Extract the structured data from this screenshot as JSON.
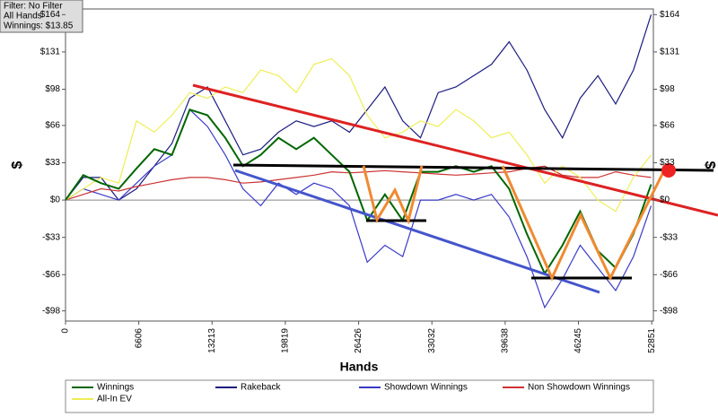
{
  "chart_data": {
    "type": "line",
    "annotations": [
      "Filter: No Filter",
      "All Hands",
      "Winnings: $13.85"
    ],
    "x_label": "Hands",
    "y_label": "$",
    "y2_label": "$",
    "x": [
      0,
      1600,
      3200,
      4800,
      6400,
      8000,
      9600,
      11200,
      12800,
      14400,
      16000,
      17600,
      19200,
      20800,
      22400,
      24000,
      25600,
      27200,
      28800,
      30400,
      32000,
      33600,
      35200,
      36800,
      38400,
      40000,
      41600,
      43200,
      44800,
      46400,
      48000,
      49600,
      51200,
      52800
    ],
    "series": [
      {
        "name": "Winnings",
        "color": "#006600",
        "values": [
          0,
          22,
          15,
          10,
          28,
          45,
          40,
          80,
          75,
          55,
          30,
          40,
          55,
          45,
          55,
          40,
          25,
          -18,
          5,
          -18,
          25,
          25,
          30,
          25,
          30,
          10,
          -30,
          -65,
          -40,
          -10,
          -45,
          -60,
          -30,
          13.85
        ]
      },
      {
        "name": "Rakeback",
        "color": "#1c1c80",
        "values": [
          0,
          20,
          20,
          0,
          10,
          30,
          50,
          90,
          100,
          70,
          40,
          45,
          60,
          70,
          65,
          70,
          60,
          80,
          100,
          70,
          55,
          95,
          100,
          110,
          120,
          140,
          115,
          80,
          55,
          90,
          110,
          85,
          115,
          164
        ]
      },
      {
        "name": "Showdown Winnings",
        "color": "#3a3ac8",
        "values": [
          0,
          10,
          5,
          0,
          15,
          30,
          40,
          80,
          65,
          40,
          10,
          -5,
          15,
          5,
          15,
          10,
          -5,
          -55,
          -40,
          -50,
          0,
          0,
          5,
          0,
          5,
          -15,
          -50,
          -95,
          -70,
          -40,
          -60,
          -80,
          -50,
          -5
        ]
      },
      {
        "name": "Non Showdown Winnings",
        "color": "#cc3333",
        "values": [
          0,
          5,
          10,
          8,
          12,
          15,
          18,
          20,
          20,
          18,
          15,
          16,
          18,
          20,
          22,
          25,
          24,
          25,
          26,
          25,
          24,
          23,
          22,
          23,
          24,
          25,
          28,
          30,
          22,
          20,
          20,
          25,
          22,
          20
        ]
      },
      {
        "name": "All-In EV",
        "color": "#eeee55",
        "values": [
          0,
          10,
          20,
          15,
          70,
          60,
          75,
          95,
          90,
          100,
          95,
          115,
          110,
          95,
          120,
          125,
          110,
          75,
          55,
          60,
          70,
          65,
          80,
          70,
          55,
          60,
          40,
          15,
          30,
          20,
          0,
          -10,
          20,
          40
        ]
      }
    ],
    "xlim": [
      0,
      53000
    ],
    "xticks": [
      0,
      6606,
      13213,
      19819,
      26426,
      33032,
      39638,
      46245,
      52851
    ],
    "ylim": [
      -107,
      169
    ],
    "yticks": [
      {
        "value": -98,
        "label": "-$98"
      },
      {
        "value": -66,
        "label": "-$66"
      },
      {
        "value": -33,
        "label": "-$33"
      },
      {
        "value": 0,
        "label": "$0"
      },
      {
        "value": 33,
        "label": "$33"
      },
      {
        "value": 66,
        "label": "$66"
      },
      {
        "value": 98,
        "label": "$98"
      },
      {
        "value": 131,
        "label": "$131"
      },
      {
        "value": 164,
        "label": "$164"
      }
    ],
    "y2lim": [
      -107,
      169
    ],
    "y2ticks": [
      {
        "value": -98,
        "label": "-$98"
      },
      {
        "value": -66,
        "label": "-$66"
      },
      {
        "value": -33,
        "label": "-$33"
      },
      {
        "value": 0,
        "label": "$0"
      },
      {
        "value": 33,
        "label": "$33"
      },
      {
        "value": 66,
        "label": "$66"
      },
      {
        "value": 98,
        "label": "$98"
      },
      {
        "value": 131,
        "label": "$131"
      },
      {
        "value": 164,
        "label": "$164"
      }
    ],
    "grid": false
  }
}
